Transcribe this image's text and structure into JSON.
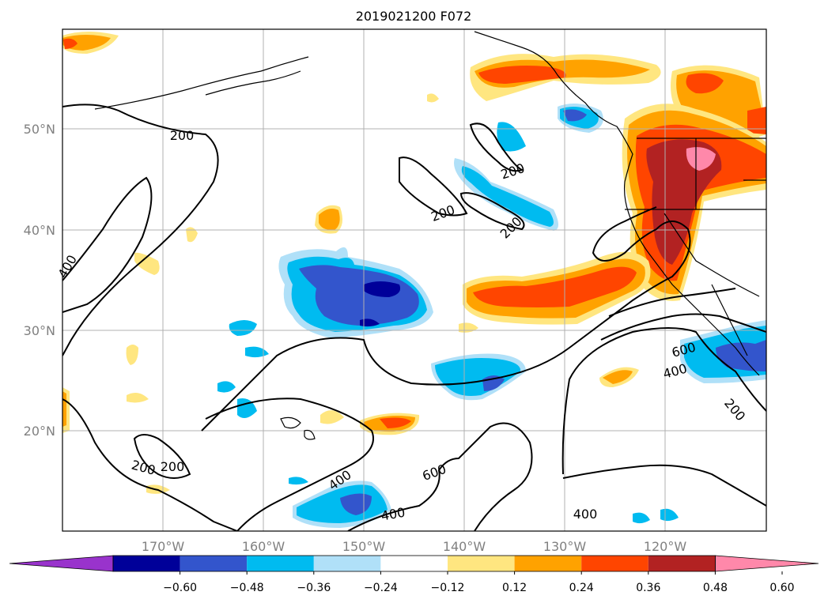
{
  "title": "2019021200 F072",
  "lat_labels": [
    "50°N",
    "40°N",
    "30°N",
    "20°N"
  ],
  "lon_labels": [
    "170°W",
    "160°W",
    "150°W",
    "140°W",
    "130°W",
    "120°W"
  ],
  "colorbar": {
    "tick_labels": [
      "−0.60",
      "−0.48",
      "−0.36",
      "−0.24",
      "−0.12",
      "0.12",
      "0.24",
      "0.36",
      "0.48",
      "0.60"
    ],
    "colors": [
      "#9933cc",
      "#000099",
      "#3355cc",
      "#00bbf0",
      "#b0e0f8",
      "#ffffff",
      "#ffe680",
      "#ffa200",
      "#ff4500",
      "#b22222",
      "#ff88aa"
    ]
  },
  "contour_labels": [
    "200",
    "200",
    "200",
    "200",
    "400",
    "200",
    "200",
    "400",
    "600",
    "400",
    "400",
    "600",
    "400",
    "200",
    "400"
  ]
}
